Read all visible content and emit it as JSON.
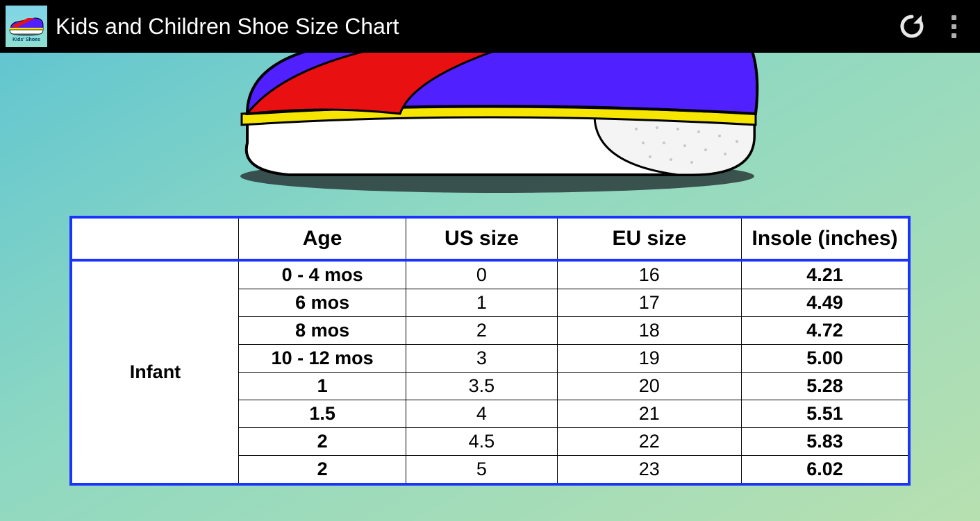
{
  "appbar": {
    "icon_label": "Kids' Shoes",
    "title": "Kids and Children Shoe Size Chart"
  },
  "colors": {
    "actionbar_bg": "#000000",
    "actionbar_fg": "#ffffff",
    "table_border": "#1a33ff",
    "table_inner_border": "#000000",
    "table_bg": "#ffffff",
    "group_label_color": "#00339a",
    "bg_gradient_from": "#62c6d0",
    "bg_gradient_mid": "#8ed8c2",
    "bg_gradient_to": "#b7e0b0",
    "shoe_upper": "#5020ff",
    "shoe_stripe": "#e81010",
    "shoe_trim": "#f6e500",
    "shoe_sole": "#ffffff",
    "shoe_shadow": "#2a3a3a"
  },
  "table": {
    "columns": [
      "",
      "Age",
      "US size",
      "EU size",
      "Insole (inches)"
    ],
    "column_widths_pct": [
      20,
      20,
      18,
      22,
      20
    ],
    "header_fontsize": 30,
    "cell_fontsize": 27,
    "group_label_fontsize": 40,
    "groups": [
      {
        "label": "Infant",
        "rows": [
          {
            "age": "0 - 4 mos",
            "us": "0",
            "eu": "16",
            "insole": "4.21"
          },
          {
            "age": "6 mos",
            "us": "1",
            "eu": "17",
            "insole": "4.49"
          },
          {
            "age": "8 mos",
            "us": "2",
            "eu": "18",
            "insole": "4.72"
          },
          {
            "age": "10 - 12 mos",
            "us": "3",
            "eu": "19",
            "insole": "5.00"
          },
          {
            "age": "1",
            "us": "3.5",
            "eu": "20",
            "insole": "5.28"
          },
          {
            "age": "1.5",
            "us": "4",
            "eu": "21",
            "insole": "5.51"
          },
          {
            "age": "2",
            "us": "4.5",
            "eu": "22",
            "insole": "5.83"
          },
          {
            "age": "2",
            "us": "5",
            "eu": "23",
            "insole": "6.02"
          }
        ]
      }
    ]
  }
}
